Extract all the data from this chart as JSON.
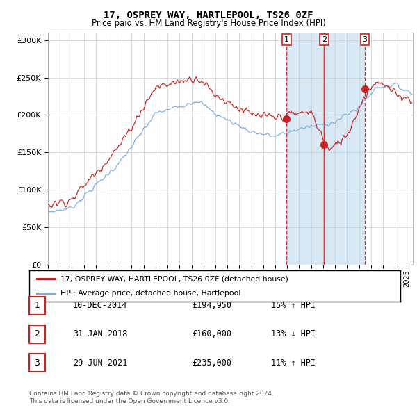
{
  "title": "17, OSPREY WAY, HARTLEPOOL, TS26 0ZF",
  "subtitle": "Price paid vs. HM Land Registry's House Price Index (HPI)",
  "legend_line1": "17, OSPREY WAY, HARTLEPOOL, TS26 0ZF (detached house)",
  "legend_line2": "HPI: Average price, detached house, Hartlepool",
  "footer1": "Contains HM Land Registry data © Crown copyright and database right 2024.",
  "footer2": "This data is licensed under the Open Government Licence v3.0.",
  "transactions": [
    {
      "num": "1",
      "date": "10-DEC-2014",
      "price": "£194,950",
      "pct": "15%",
      "dir": "↑",
      "rel": "HPI"
    },
    {
      "num": "2",
      "date": "31-JAN-2018",
      "price": "£160,000",
      "pct": "13%",
      "dir": "↓",
      "rel": "HPI"
    },
    {
      "num": "3",
      "date": "29-JUN-2021",
      "price": "£235,000",
      "pct": "11%",
      "dir": "↑",
      "rel": "HPI"
    }
  ],
  "sale_dates": [
    2014.95,
    2018.08,
    2021.5
  ],
  "sale_prices": [
    194950,
    160000,
    235000
  ],
  "ylim": [
    0,
    310000
  ],
  "xlim_start": 1995.0,
  "xlim_end": 2025.5,
  "hpi_color": "#7aaadd",
  "price_color": "#cc2222",
  "vline_color": "#cc2222",
  "background_shade_color": "#d8e8f5",
  "grid_color": "#cccccc",
  "vline_styles": [
    "dashed",
    "solid",
    "dashed"
  ]
}
